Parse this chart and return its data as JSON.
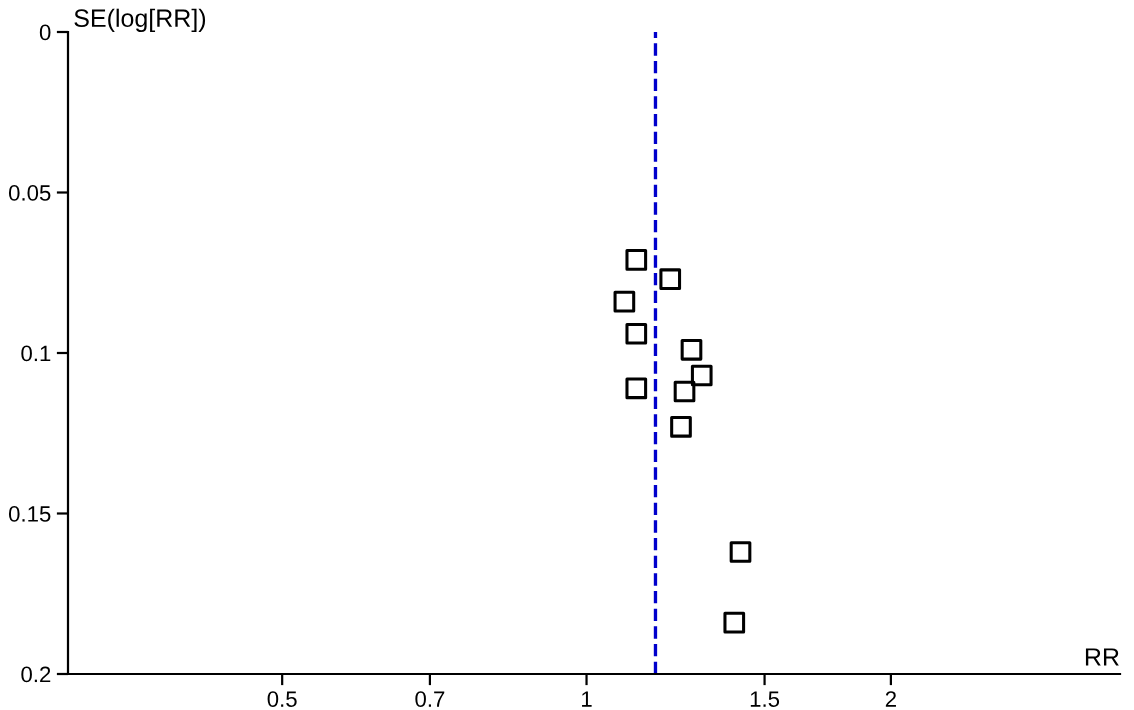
{
  "chart_data": {
    "type": "scatter",
    "xlabel": "RR",
    "ylabel": "SE(log[RR])",
    "log": "x",
    "x": [
      1.12,
      1.21,
      1.09,
      1.12,
      1.27,
      1.3,
      1.12,
      1.25,
      1.24,
      1.42,
      1.4
    ],
    "series": [
      {
        "color": "#000000",
        "values": [
          0.071,
          0.077,
          0.084,
          0.094,
          0.099,
          0.107,
          0.111,
          0.112,
          0.123,
          0.162,
          0.184
        ]
      }
    ],
    "marker": "square",
    "xlim": [
      0.307,
      3.37
    ],
    "xticks": [
      0.5,
      0.7,
      1,
      1.5,
      2
    ],
    "ylim": [
      0.2,
      0
    ],
    "yticks": [
      0,
      0.05,
      0.1,
      0.15,
      0.2
    ],
    "ref_lines": [
      {
        "axis": "x",
        "value": 1.17,
        "color": "#0000cc",
        "line_style": "dashed"
      }
    ],
    "grid": false
  }
}
